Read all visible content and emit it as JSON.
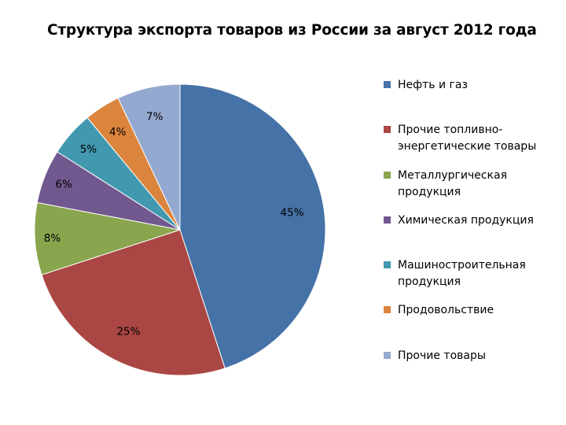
{
  "chart_data": {
    "type": "pie",
    "title": "Структура экспорта товаров из России за август 2012 года",
    "categories": [
      "Нефть и газ",
      "Прочие топливно-энергетические товары",
      "Металлургическая продукция",
      "Химическая продукция",
      "Машиностроительная продукция",
      "Продовольствие",
      "Прочие товары"
    ],
    "values": [
      45,
      25,
      8,
      6,
      5,
      4,
      7
    ],
    "data_labels": [
      "45%",
      "25%",
      "8%",
      "6%",
      "5%",
      "4%",
      "7%"
    ],
    "colors": [
      "#4572a7",
      "#aa4643",
      "#89a54e",
      "#71588f",
      "#4198af",
      "#db843d",
      "#93a9cf"
    ],
    "legend_placement": "right"
  },
  "legend": {
    "items": [
      {
        "label": "Нефть  и газ"
      },
      {
        "label": "Прочие топливно-энергетические  товары"
      },
      {
        "label": "Металлургическая продукция"
      },
      {
        "label": "Химическая продукция"
      },
      {
        "label": "Машиностроительная продукция"
      },
      {
        "label": "Продовольствие"
      },
      {
        "label": "Прочие товары"
      }
    ]
  }
}
